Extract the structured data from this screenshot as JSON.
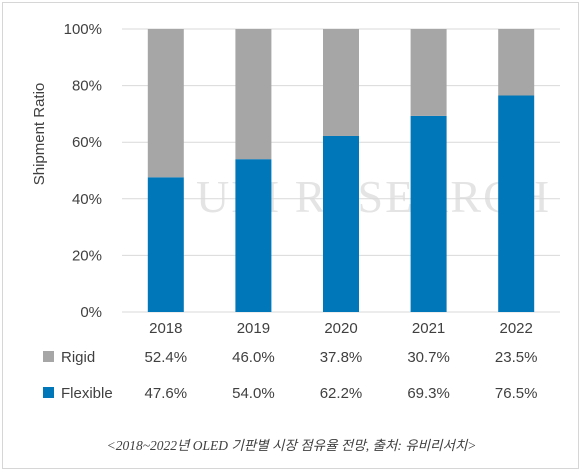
{
  "chart_data": {
    "type": "bar",
    "stacked": true,
    "ylabel": "Shipment Ratio",
    "ylim": [
      0,
      100
    ],
    "yticks": [
      "0%",
      "20%",
      "40%",
      "60%",
      "80%",
      "100%"
    ],
    "grid": true,
    "categories": [
      "2018",
      "2019",
      "2020",
      "2021",
      "2022"
    ],
    "series": [
      {
        "name": "Flexible",
        "color": "#0077b8",
        "values": [
          47.6,
          54.0,
          62.2,
          69.3,
          76.5
        ],
        "labels": [
          "47.6%",
          "54.0%",
          "62.2%",
          "69.3%",
          "76.5%"
        ]
      },
      {
        "name": "Rigid",
        "color": "#a6a6a6",
        "values": [
          52.4,
          46.0,
          37.8,
          30.7,
          23.5
        ],
        "labels": [
          "52.4%",
          "46.0%",
          "37.8%",
          "30.7%",
          "23.5%"
        ]
      }
    ],
    "table_rows": [
      "Rigid",
      "Flexible"
    ]
  },
  "watermark": "UBI RESEARCH",
  "caption": "<2018~2022년 OLED 기판별 시장 점유율 전망, 출처: 유비리서치>"
}
